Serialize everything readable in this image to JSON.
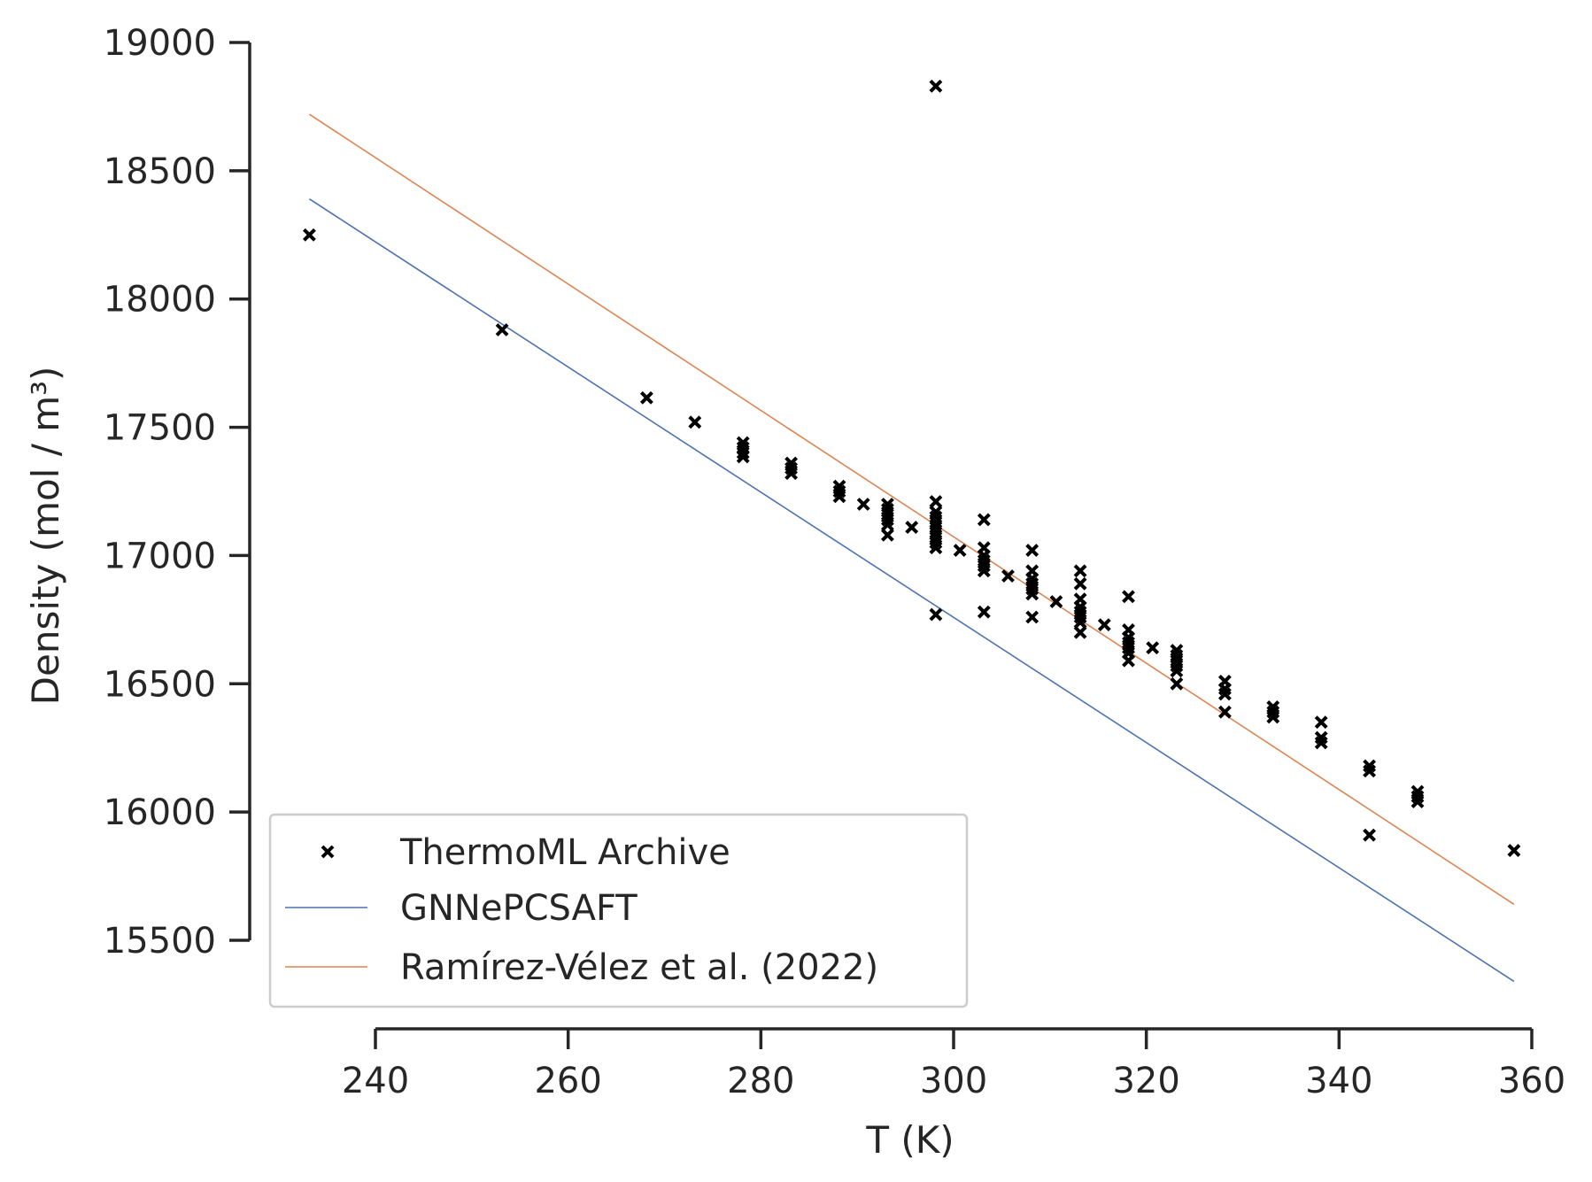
{
  "chart_data": {
    "type": "scatter",
    "xlabel": "T (K)",
    "ylabel": "Density (mol / m³)",
    "xlim": [
      228,
      360
    ],
    "ylim": [
      15350,
      19000
    ],
    "xticks": [
      240,
      260,
      280,
      300,
      320,
      340,
      360
    ],
    "yticks": [
      15500,
      16000,
      16500,
      17000,
      17500,
      18000,
      18500,
      19000
    ],
    "xtick_labels": [
      "240",
      "260",
      "280",
      "300",
      "320",
      "340",
      "360"
    ],
    "ytick_labels": [
      "15500",
      "16000",
      "16500",
      "17000",
      "17500",
      "18000",
      "18500",
      "19000"
    ],
    "grid": false,
    "legend_position": "lower-left",
    "series": [
      {
        "name": "ThermoML Archive",
        "kind": "scatter",
        "marker": "x",
        "color": "#000000",
        "points": [
          [
            233.15,
            18250
          ],
          [
            253.15,
            17880
          ],
          [
            268.15,
            17615
          ],
          [
            273.15,
            17520
          ],
          [
            278.15,
            17440
          ],
          [
            278.15,
            17420
          ],
          [
            278.15,
            17400
          ],
          [
            278.15,
            17385
          ],
          [
            283.15,
            17360
          ],
          [
            283.15,
            17340
          ],
          [
            283.15,
            17320
          ],
          [
            288.15,
            17270
          ],
          [
            288.15,
            17250
          ],
          [
            288.15,
            17230
          ],
          [
            290.65,
            17200
          ],
          [
            293.15,
            17200
          ],
          [
            293.15,
            17180
          ],
          [
            293.15,
            17160
          ],
          [
            293.15,
            17140
          ],
          [
            293.15,
            17120
          ],
          [
            293.15,
            17080
          ],
          [
            295.65,
            17110
          ],
          [
            298.15,
            18830
          ],
          [
            298.15,
            17210
          ],
          [
            298.15,
            17170
          ],
          [
            298.15,
            17150
          ],
          [
            298.15,
            17130
          ],
          [
            298.15,
            17110
          ],
          [
            298.15,
            17090
          ],
          [
            298.15,
            17070
          ],
          [
            298.15,
            17050
          ],
          [
            298.15,
            17030
          ],
          [
            298.15,
            16770
          ],
          [
            300.65,
            17020
          ],
          [
            303.15,
            17140
          ],
          [
            303.15,
            17030
          ],
          [
            303.15,
            17000
          ],
          [
            303.15,
            16980
          ],
          [
            303.15,
            16960
          ],
          [
            303.15,
            16940
          ],
          [
            303.15,
            16780
          ],
          [
            305.65,
            16920
          ],
          [
            308.15,
            17020
          ],
          [
            308.15,
            16940
          ],
          [
            308.15,
            16910
          ],
          [
            308.15,
            16890
          ],
          [
            308.15,
            16870
          ],
          [
            308.15,
            16850
          ],
          [
            308.15,
            16760
          ],
          [
            310.65,
            16820
          ],
          [
            313.15,
            16940
          ],
          [
            313.15,
            16890
          ],
          [
            313.15,
            16830
          ],
          [
            313.15,
            16800
          ],
          [
            313.15,
            16780
          ],
          [
            313.15,
            16760
          ],
          [
            313.15,
            16740
          ],
          [
            313.15,
            16700
          ],
          [
            315.65,
            16730
          ],
          [
            318.15,
            16840
          ],
          [
            318.15,
            16710
          ],
          [
            318.15,
            16680
          ],
          [
            318.15,
            16660
          ],
          [
            318.15,
            16640
          ],
          [
            318.15,
            16620
          ],
          [
            318.15,
            16590
          ],
          [
            320.65,
            16640
          ],
          [
            323.15,
            16630
          ],
          [
            323.15,
            16610
          ],
          [
            323.15,
            16590
          ],
          [
            323.15,
            16570
          ],
          [
            323.15,
            16550
          ],
          [
            323.15,
            16500
          ],
          [
            328.15,
            16510
          ],
          [
            328.15,
            16480
          ],
          [
            328.15,
            16460
          ],
          [
            328.15,
            16390
          ],
          [
            333.15,
            16410
          ],
          [
            333.15,
            16390
          ],
          [
            333.15,
            16370
          ],
          [
            338.15,
            16350
          ],
          [
            338.15,
            16290
          ],
          [
            338.15,
            16270
          ],
          [
            343.15,
            16180
          ],
          [
            343.15,
            16160
          ],
          [
            343.15,
            15910
          ],
          [
            348.15,
            16080
          ],
          [
            348.15,
            16060
          ],
          [
            348.15,
            16040
          ],
          [
            358.15,
            15850
          ]
        ]
      },
      {
        "name": "GNNePCSAFT",
        "kind": "line",
        "color": "#4c72b0",
        "x": [
          233.15,
          358.15
        ],
        "y": [
          18390,
          15340
        ]
      },
      {
        "name": "Ramírez-Vélez et al. (2022)",
        "kind": "line",
        "color": "#dd8452",
        "x": [
          233.15,
          358.15
        ],
        "y": [
          18720,
          15640
        ]
      }
    ]
  }
}
